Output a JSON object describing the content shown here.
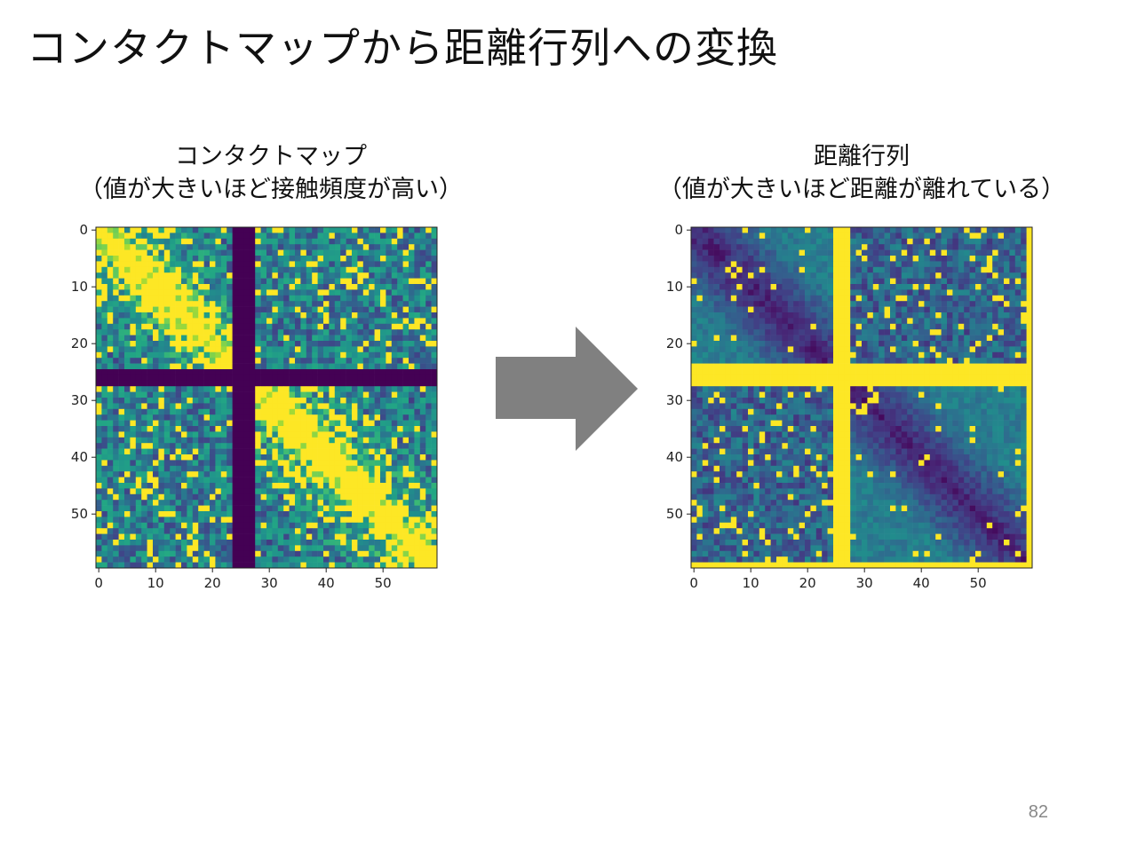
{
  "slide": {
    "title": "コンタクトマップから距離行列への変換",
    "page_number": "82"
  },
  "colors": {
    "viridis_low": "#440154",
    "viridis_high": "#fde725",
    "arrow": "#808080"
  },
  "chart_data": [
    {
      "type": "heatmap",
      "title_line1": "コンタクトマップ",
      "title_line2": "（値が大きいほど接触頻度が高い）",
      "colormap": "viridis",
      "size": 60,
      "xlim": [
        0,
        59
      ],
      "ylim": [
        59,
        0
      ],
      "x_ticks": [
        0,
        10,
        20,
        30,
        40,
        50
      ],
      "y_ticks": [
        0,
        10,
        20,
        30,
        40,
        50
      ],
      "structure": {
        "domain_boundary": [
          25,
          28
        ],
        "gap_row_band": [
          25,
          27
        ],
        "gap_col_band": [
          24,
          27
        ],
        "diagonal_saturated_in_domains": true,
        "off_domain_values": "mixed low/mid"
      }
    },
    {
      "type": "heatmap",
      "title_line1": "距離行列",
      "title_line2": "（値が大きいほど距離が離れている）",
      "colormap": "viridis",
      "size": 60,
      "xlim": [
        0,
        59
      ],
      "ylim": [
        59,
        0
      ],
      "x_ticks": [
        0,
        10,
        20,
        30,
        40,
        50
      ],
      "y_ticks": [
        0,
        10,
        20,
        30,
        40,
        50
      ],
      "structure": {
        "domain_boundary": [
          25,
          28
        ],
        "gap_row_band": [
          24,
          27
        ],
        "gap_col_band": [
          25,
          27
        ],
        "diagonal_low_in_domains": true,
        "off_domain_values": "mostly low with scattered high"
      }
    }
  ]
}
